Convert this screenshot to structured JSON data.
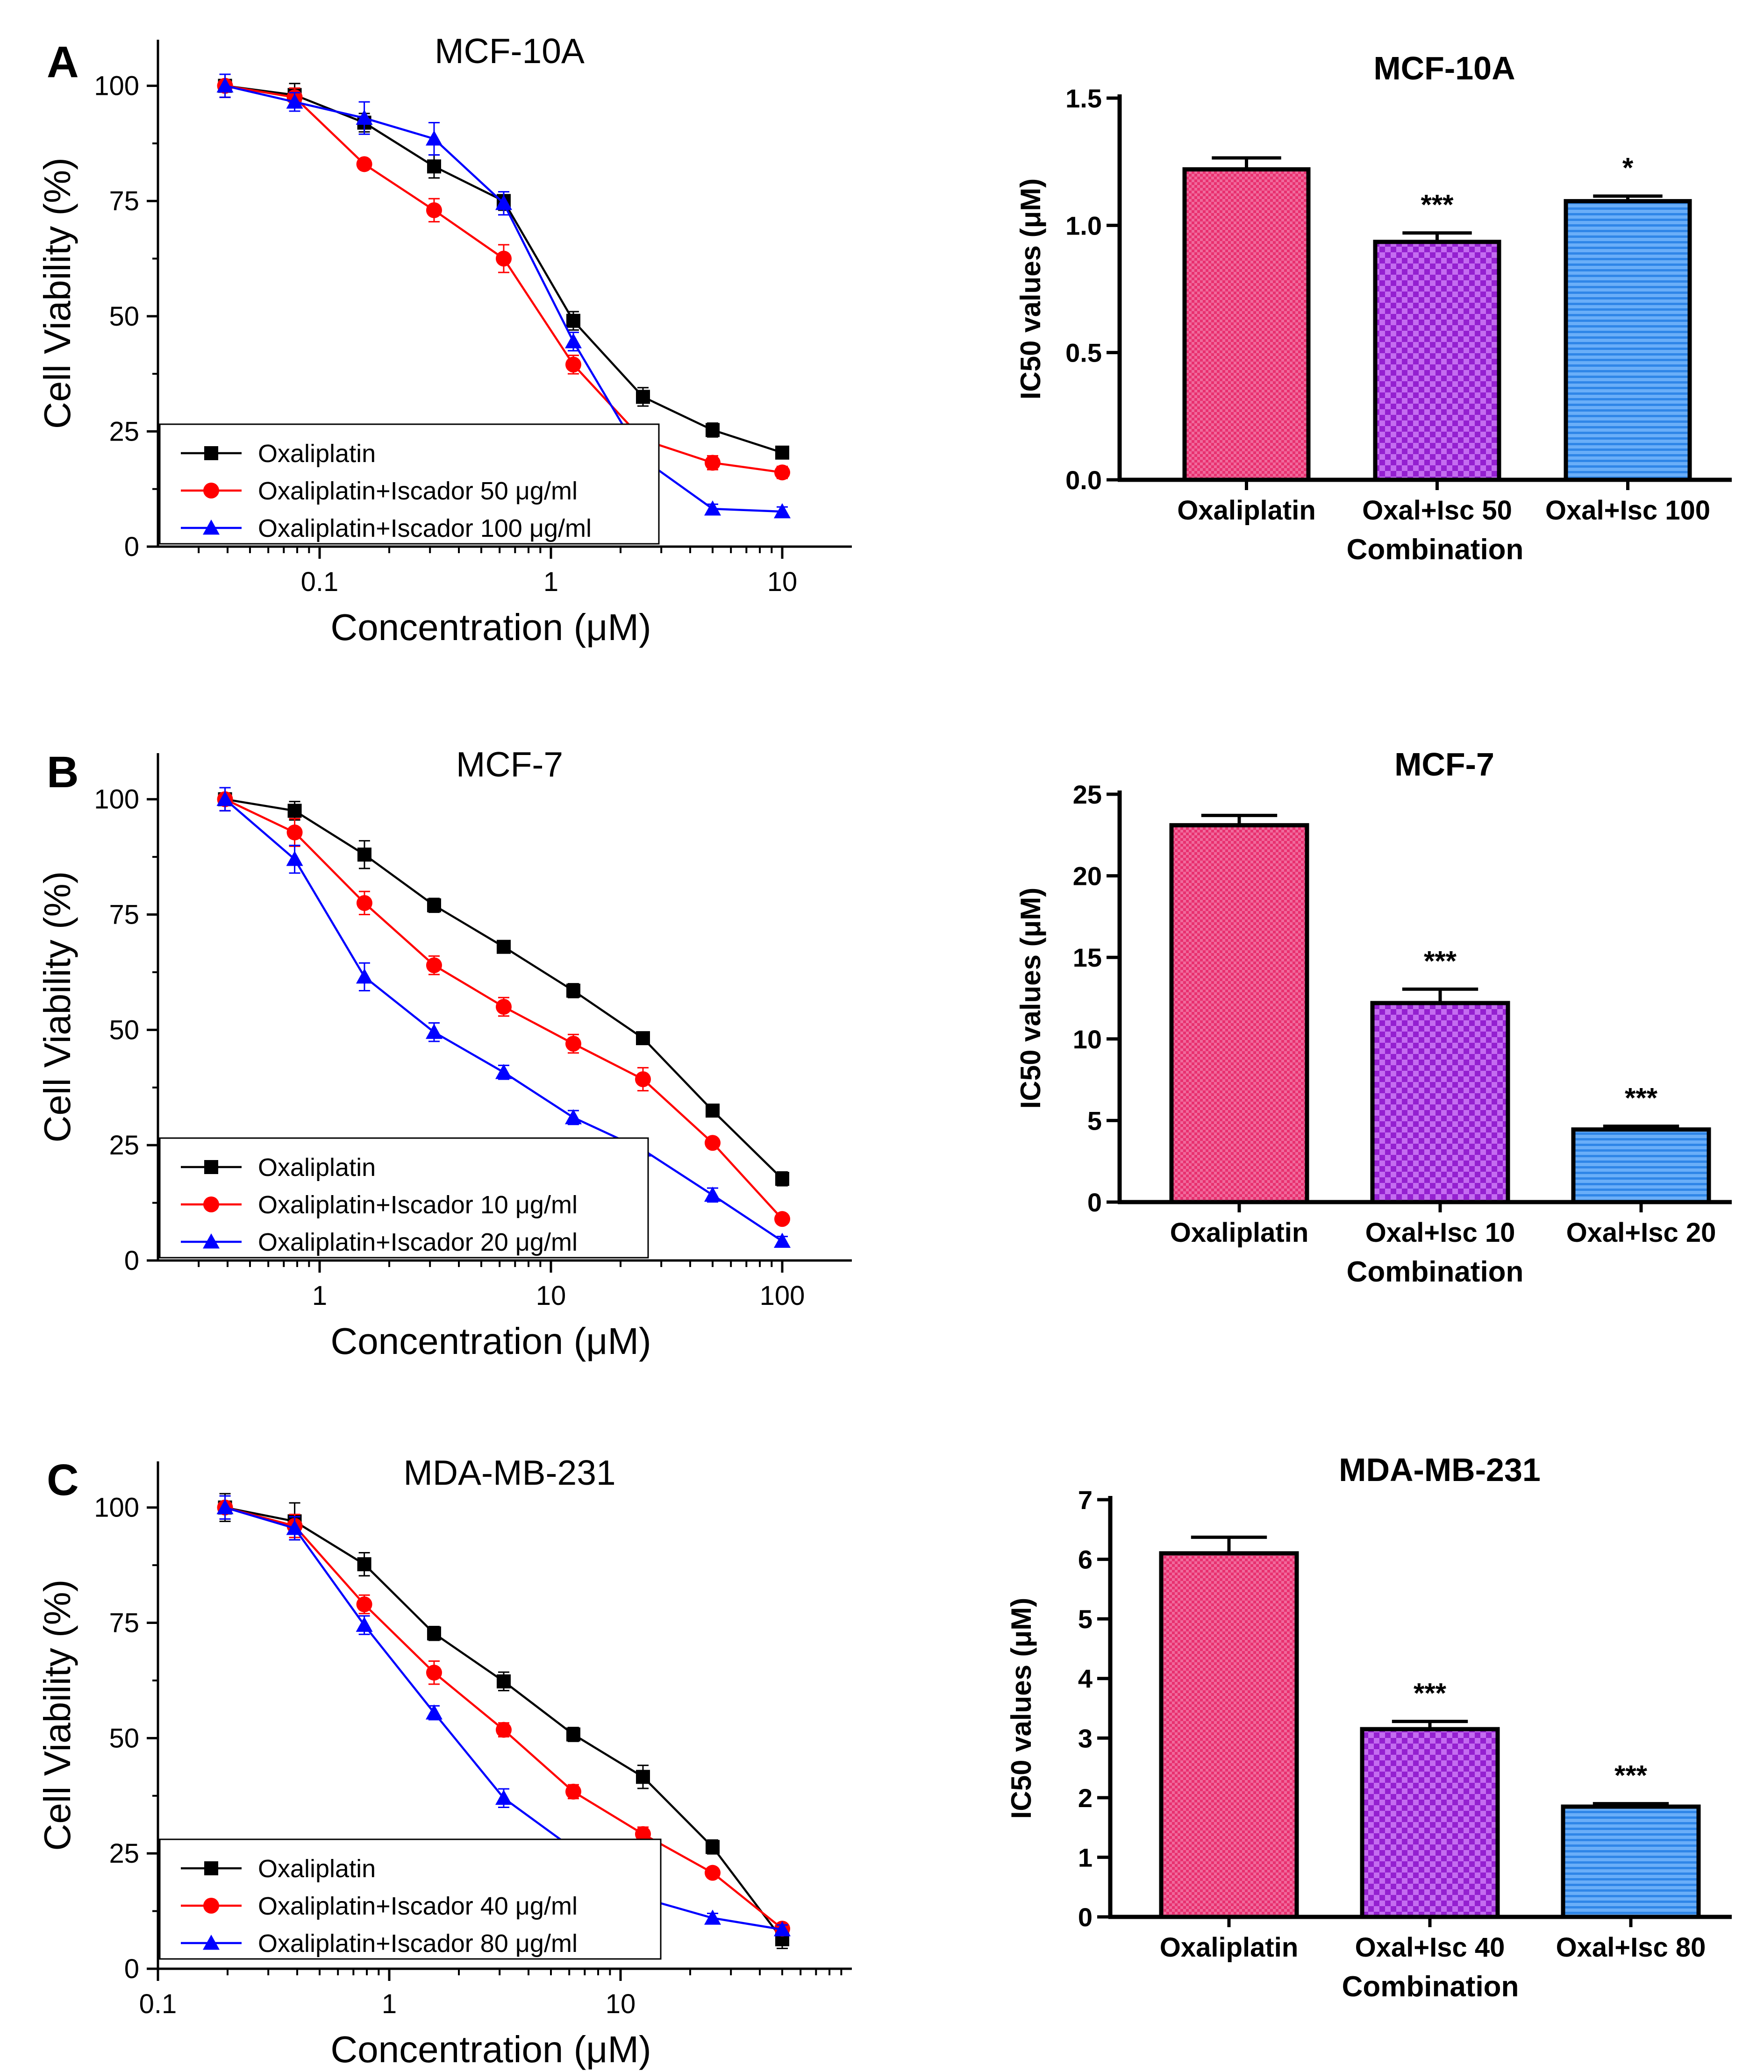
{
  "figure": {
    "panels": [
      "A",
      "B",
      "C"
    ]
  },
  "colors": {
    "black": "#000000",
    "red": "#ff0000",
    "blue": "#0000ff",
    "pink": "#ee3b7c",
    "purple": "#a52cdc",
    "skyblue": "#3d93ee"
  },
  "chart_data": [
    {
      "type": "line",
      "panel": "A",
      "title": "MCF-10A",
      "xlabel": "Concentration (μM)",
      "ylabel": "Cell Viability (%)",
      "xscale": "log",
      "xlim": [
        0.02,
        20
      ],
      "ylim": [
        0,
        110
      ],
      "xticks": [
        0.1,
        1,
        10
      ],
      "xtick_labels": [
        "0.1",
        "1",
        "10"
      ],
      "yticks": [
        0,
        25,
        50,
        75,
        100
      ],
      "ytick_labels": [
        "0",
        "25",
        "50",
        "75",
        "100"
      ],
      "legend_position": "bottom-left",
      "series": [
        {
          "name": "Oxaliplatin",
          "color": "#000000",
          "marker": "square",
          "x": [
            0.039,
            0.078,
            0.156,
            0.3125,
            0.625,
            1.25,
            2.5,
            5,
            10
          ],
          "y": [
            100,
            98,
            92,
            82.5,
            75,
            49,
            32.5,
            25.3,
            20.4
          ],
          "err": [
            2.5,
            2.5,
            2,
            2.5,
            2,
            2,
            2,
            1.5,
            1
          ]
        },
        {
          "name": "Oxaliplatin+Iscador 50 μg/ml",
          "color": "#ff0000",
          "marker": "circle",
          "x": [
            0.039,
            0.078,
            0.156,
            0.3125,
            0.625,
            1.25,
            2.5,
            5,
            10
          ],
          "y": [
            100,
            97.5,
            83,
            73,
            62.5,
            39.5,
            23.2,
            18.2,
            16.1
          ],
          "err": [
            2.5,
            2,
            1,
            2.5,
            3,
            2,
            1.5,
            1.5,
            1.3
          ]
        },
        {
          "name": "Oxaliplatin+Iscador 100 μg/ml",
          "color": "#0000ff",
          "marker": "triangle",
          "x": [
            0.039,
            0.078,
            0.156,
            0.3125,
            0.625,
            1.25,
            2.5,
            5,
            10
          ],
          "y": [
            100,
            96.5,
            93,
            88.5,
            74.5,
            44.5,
            19,
            8.2,
            7.6
          ],
          "err": [
            2.5,
            2,
            3.5,
            3.5,
            2.5,
            2,
            1.5,
            1,
            1
          ]
        }
      ]
    },
    {
      "type": "bar",
      "panel": "A",
      "title": "MCF-10A",
      "xlabel": "Combination",
      "ylabel": "IC50 values (μM)",
      "ylim": [
        0,
        1.5
      ],
      "yticks": [
        0,
        0.5,
        1,
        1.5
      ],
      "ytick_labels": [
        "0.0",
        "0.5",
        "1.0",
        "1.5"
      ],
      "categories": [
        "Oxaliplatin",
        "Oxal+Isc 50",
        "Oxal+Isc 100"
      ],
      "values": [
        1.22,
        0.935,
        1.095
      ],
      "errors": [
        0.045,
        0.035,
        0.02
      ],
      "annotations": [
        "",
        "***",
        "*"
      ]
    },
    {
      "type": "line",
      "panel": "B",
      "title": "MCF-7",
      "xlabel": "Concentration (μM)",
      "ylabel": "Cell Viability (%)",
      "xscale": "log",
      "xlim": [
        0.2,
        200
      ],
      "ylim": [
        0,
        110
      ],
      "xticks": [
        1,
        10,
        100
      ],
      "xtick_labels": [
        "1",
        "10",
        "100"
      ],
      "yticks": [
        0,
        25,
        50,
        75,
        100
      ],
      "ytick_labels": [
        "0",
        "25",
        "50",
        "75",
        "100"
      ],
      "legend_position": "bottom-left",
      "series": [
        {
          "name": "Oxaliplatin",
          "color": "#000000",
          "marker": "square",
          "x": [
            0.39,
            0.78,
            1.5625,
            3.125,
            6.25,
            12.5,
            25,
            50,
            100
          ],
          "y": [
            100,
            97.5,
            88,
            77,
            68,
            58.5,
            48.2,
            32.5,
            17.7
          ],
          "err": [
            2.5,
            2,
            3,
            1.5,
            1,
            1.5,
            1,
            1,
            1.5
          ]
        },
        {
          "name": "Oxaliplatin+Iscador 10 μg/ml",
          "color": "#ff0000",
          "marker": "circle",
          "x": [
            0.39,
            0.78,
            1.5625,
            3.125,
            6.25,
            12.5,
            25,
            50,
            100
          ],
          "y": [
            100,
            92.8,
            77.5,
            64,
            55,
            47,
            39.3,
            25.5,
            9
          ],
          "err": [
            2.5,
            3,
            2.5,
            2,
            2,
            2,
            2.5,
            1,
            1
          ]
        },
        {
          "name": "Oxaliplatin+Iscador 20 μg/ml",
          "color": "#0000ff",
          "marker": "triangle",
          "x": [
            0.39,
            0.78,
            1.5625,
            3.125,
            6.25,
            12.5,
            25,
            50,
            100
          ],
          "y": [
            100,
            87,
            61.5,
            49.5,
            40.8,
            31,
            24,
            14.2,
            4.2
          ],
          "err": [
            2.5,
            3,
            3,
            2,
            1.5,
            1.5,
            1.5,
            1.5,
            1
          ]
        }
      ]
    },
    {
      "type": "bar",
      "panel": "B",
      "title": "MCF-7",
      "xlabel": "Combination",
      "ylabel": "IC50 values (μM)",
      "ylim": [
        0,
        25
      ],
      "yticks": [
        0,
        5,
        10,
        15,
        20,
        25
      ],
      "ytick_labels": [
        "0",
        "5",
        "10",
        "15",
        "20",
        "25"
      ],
      "categories": [
        "Oxaliplatin",
        "Oxal+Isc 10",
        "Oxal+Isc 20"
      ],
      "values": [
        23.1,
        12.2,
        4.45
      ],
      "errors": [
        0.6,
        0.85,
        0.2
      ],
      "annotations": [
        "",
        "***",
        "***"
      ]
    },
    {
      "type": "line",
      "panel": "C",
      "title": "MDA-MB-231",
      "xlabel": "Concentration (μM)",
      "ylabel": "Cell Viability (%)",
      "xscale": "log",
      "xlim": [
        0.1,
        100
      ],
      "ylim": [
        0,
        110
      ],
      "xticks": [
        0.1,
        1,
        10
      ],
      "xtick_labels": [
        "0.1",
        "1",
        "10"
      ],
      "yticks": [
        0,
        25,
        50,
        75,
        100
      ],
      "ytick_labels": [
        "0",
        "25",
        "50",
        "75",
        "100"
      ],
      "legend_position": "bottom-left",
      "series": [
        {
          "name": "Oxaliplatin",
          "color": "#000000",
          "marker": "square",
          "x": [
            0.195,
            0.39,
            0.78,
            1.5625,
            3.125,
            6.25,
            12.5,
            25,
            50
          ],
          "y": [
            100,
            97,
            87.7,
            72.7,
            62.3,
            50.8,
            41.6,
            26.4,
            6.4
          ],
          "err": [
            3,
            4,
            2.5,
            1.5,
            2,
            1.5,
            2.5,
            1.5,
            2
          ]
        },
        {
          "name": "Oxaliplatin+Iscador 40 μg/ml",
          "color": "#ff0000",
          "marker": "circle",
          "x": [
            0.195,
            0.39,
            0.78,
            1.5625,
            3.125,
            6.25,
            12.5,
            25,
            50
          ],
          "y": [
            100,
            96,
            79,
            64.2,
            51.8,
            38.4,
            29.2,
            20.8,
            8.7
          ],
          "err": [
            2.5,
            2.5,
            2,
            2.5,
            1.5,
            1.5,
            1.5,
            1,
            1
          ]
        },
        {
          "name": "Oxaliplatin+Iscador 80 μg/ml",
          "color": "#0000ff",
          "marker": "triangle",
          "x": [
            0.195,
            0.39,
            0.78,
            1.5625,
            3.125,
            6.25,
            12.5,
            25,
            50
          ],
          "y": [
            100,
            95.5,
            74.5,
            55.5,
            37,
            26,
            15.3,
            11,
            8.5
          ],
          "err": [
            2.5,
            2.5,
            2,
            1.5,
            2,
            1.5,
            1,
            1,
            1
          ]
        }
      ]
    },
    {
      "type": "bar",
      "panel": "C",
      "title": "MDA-MB-231",
      "xlabel": "Combination",
      "ylabel": "IC50 values (μM)",
      "ylim": [
        0,
        7
      ],
      "yticks": [
        0,
        1,
        2,
        3,
        4,
        5,
        6,
        7
      ],
      "ytick_labels": [
        "0",
        "1",
        "2",
        "3",
        "4",
        "5",
        "6",
        "7"
      ],
      "categories": [
        "Oxaliplatin",
        "Oxal+Isc 40",
        "Oxal+Isc 80"
      ],
      "values": [
        6.1,
        3.15,
        1.85
      ],
      "errors": [
        0.27,
        0.13,
        0.05
      ],
      "annotations": [
        "",
        "***",
        "***"
      ]
    }
  ]
}
